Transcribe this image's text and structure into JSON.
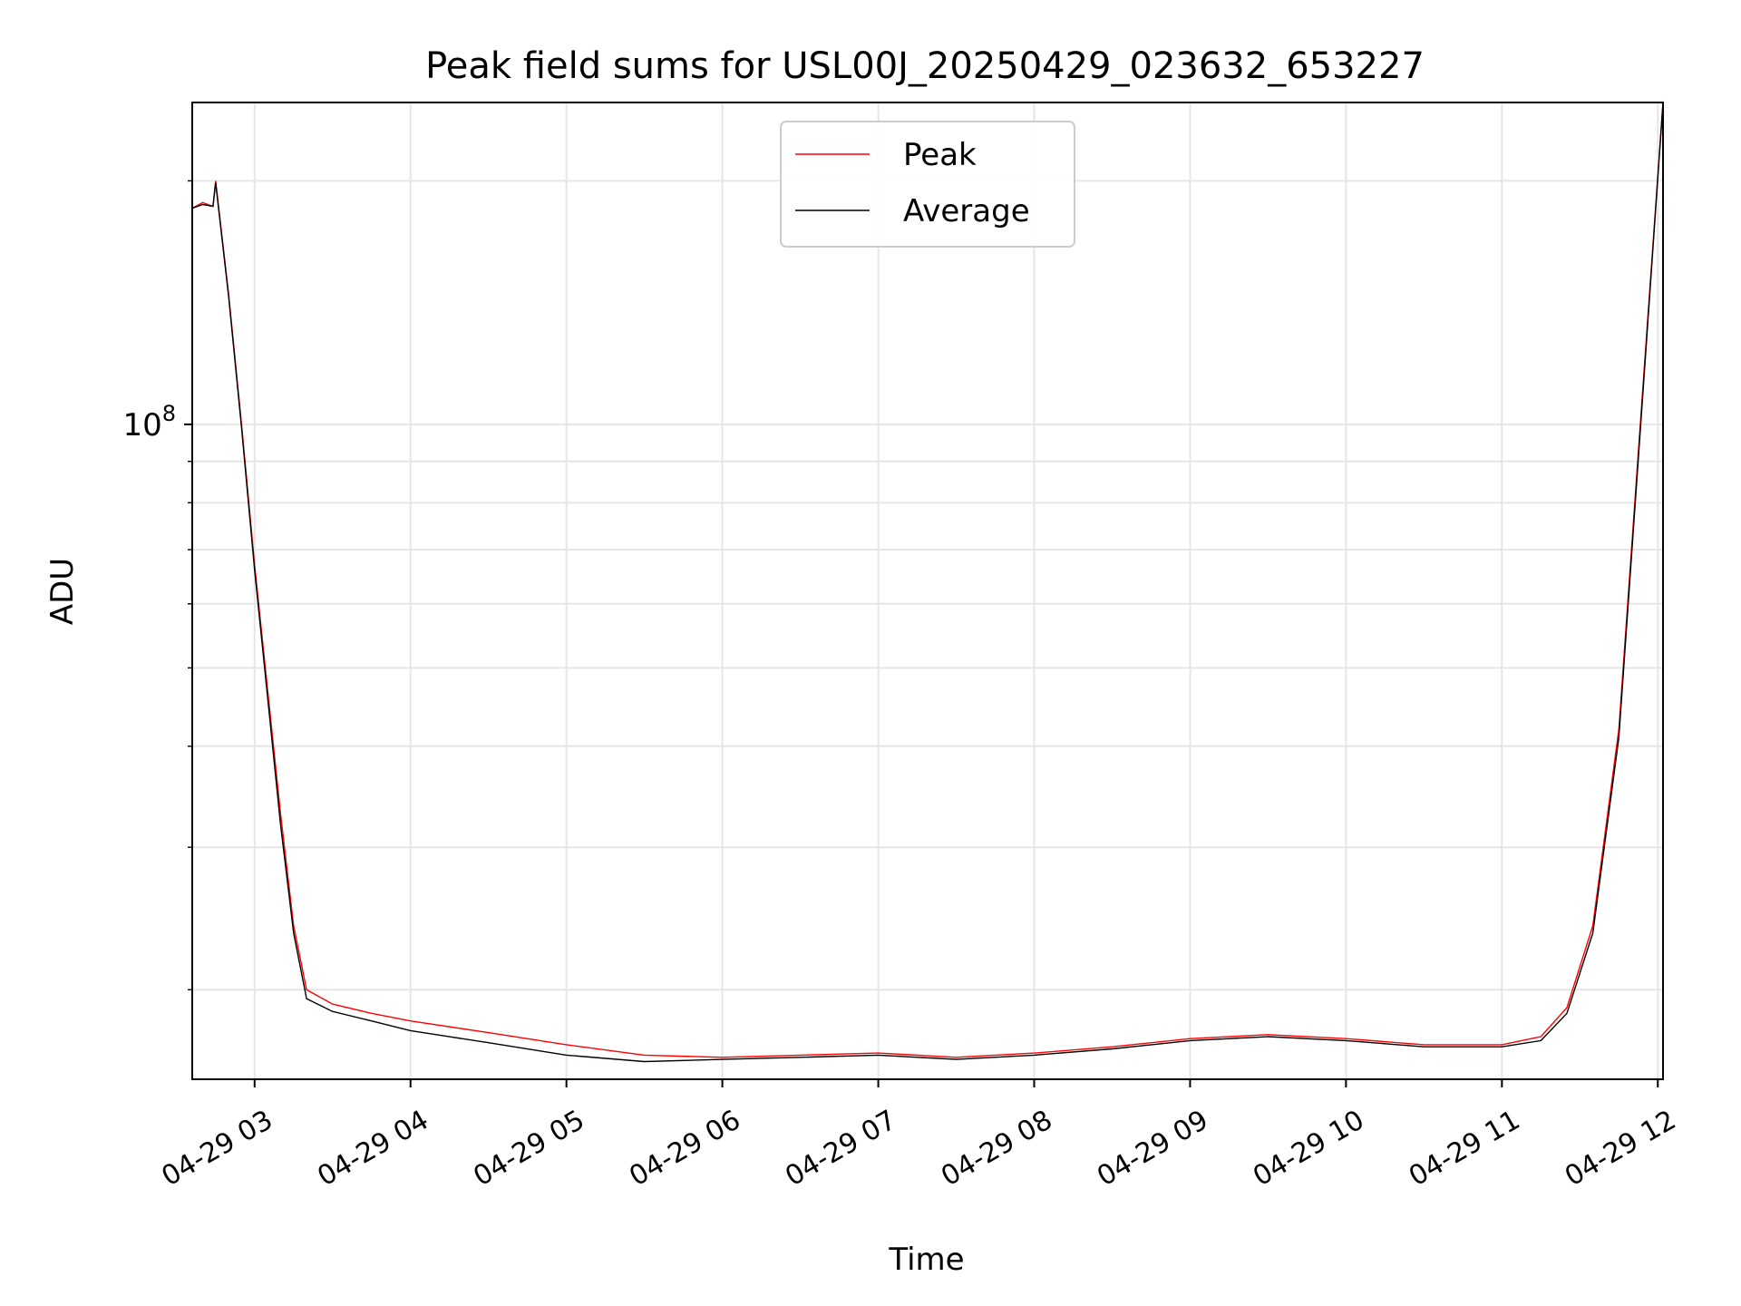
{
  "chart_data": {
    "type": "line",
    "title": "Peak field sums for USL00J_20250429_023632_653227",
    "xlabel": "Time",
    "ylabel": "ADU",
    "yscale": "log",
    "xlim": [
      "2025-04-29 02:36",
      "2025-04-29 12:02"
    ],
    "ylim": [
      15500000,
      250000000
    ],
    "xticks": [
      {
        "value": "2025-04-29 03:00",
        "label": "04-29 03"
      },
      {
        "value": "2025-04-29 04:00",
        "label": "04-29 04"
      },
      {
        "value": "2025-04-29 05:00",
        "label": "04-29 05"
      },
      {
        "value": "2025-04-29 06:00",
        "label": "04-29 06"
      },
      {
        "value": "2025-04-29 07:00",
        "label": "04-29 07"
      },
      {
        "value": "2025-04-29 08:00",
        "label": "04-29 08"
      },
      {
        "value": "2025-04-29 09:00",
        "label": "04-29 09"
      },
      {
        "value": "2025-04-29 10:00",
        "label": "04-29 10"
      },
      {
        "value": "2025-04-29 11:00",
        "label": "04-29 11"
      },
      {
        "value": "2025-04-29 12:00",
        "label": "04-29 12"
      }
    ],
    "yticks": [
      {
        "value": 100000000,
        "base": "10",
        "exponent": "8"
      }
    ],
    "grid": true,
    "legend_position": "top-center",
    "series": [
      {
        "name": "Peak",
        "color": "#ff0000",
        "x": [
          "2025-04-29 02:36",
          "2025-04-29 02:40",
          "2025-04-29 02:44",
          "2025-04-29 02:45",
          "2025-04-29 02:50",
          "2025-04-29 02:55",
          "2025-04-29 03:00",
          "2025-04-29 03:05",
          "2025-04-29 03:10",
          "2025-04-29 03:15",
          "2025-04-29 03:20",
          "2025-04-29 03:30",
          "2025-04-29 03:45",
          "2025-04-29 04:00",
          "2025-04-29 04:30",
          "2025-04-29 05:00",
          "2025-04-29 05:30",
          "2025-04-29 06:00",
          "2025-04-29 06:30",
          "2025-04-29 07:00",
          "2025-04-29 07:30",
          "2025-04-29 08:00",
          "2025-04-29 08:30",
          "2025-04-29 09:00",
          "2025-04-29 09:30",
          "2025-04-29 10:00",
          "2025-04-29 10:30",
          "2025-04-29 11:00",
          "2025-04-29 11:15",
          "2025-04-29 11:25",
          "2025-04-29 11:35",
          "2025-04-29 11:45",
          "2025-04-29 11:55",
          "2025-04-29 12:02"
        ],
        "values": [
          185000000,
          188000000,
          186000000,
          200000000,
          145000000,
          100000000,
          67000000,
          47000000,
          33000000,
          24000000,
          20000000,
          19200000,
          18700000,
          18300000,
          17700000,
          17100000,
          16600000,
          16500000,
          16600000,
          16700000,
          16500000,
          16700000,
          17000000,
          17400000,
          17600000,
          17400000,
          17100000,
          17100000,
          17500000,
          19000000,
          24000000,
          42000000,
          120000000,
          250000000
        ]
      },
      {
        "name": "Average",
        "color": "#000000",
        "x": [
          "2025-04-29 02:36",
          "2025-04-29 02:40",
          "2025-04-29 02:44",
          "2025-04-29 02:45",
          "2025-04-29 02:50",
          "2025-04-29 02:55",
          "2025-04-29 03:00",
          "2025-04-29 03:05",
          "2025-04-29 03:10",
          "2025-04-29 03:15",
          "2025-04-29 03:20",
          "2025-04-29 03:30",
          "2025-04-29 03:45",
          "2025-04-29 04:00",
          "2025-04-29 04:30",
          "2025-04-29 05:00",
          "2025-04-29 05:30",
          "2025-04-29 06:00",
          "2025-04-29 06:30",
          "2025-04-29 07:00",
          "2025-04-29 07:30",
          "2025-04-29 08:00",
          "2025-04-29 08:30",
          "2025-04-29 09:00",
          "2025-04-29 09:30",
          "2025-04-29 10:00",
          "2025-04-29 10:30",
          "2025-04-29 11:00",
          "2025-04-29 11:15",
          "2025-04-29 11:25",
          "2025-04-29 11:35",
          "2025-04-29 11:45",
          "2025-04-29 11:55",
          "2025-04-29 12:02"
        ],
        "values": [
          185000000,
          187000000,
          186000000,
          199000000,
          144000000,
          99000000,
          66000000,
          46000000,
          32000000,
          23500000,
          19500000,
          18800000,
          18300000,
          17800000,
          17200000,
          16600000,
          16300000,
          16400000,
          16500000,
          16600000,
          16400000,
          16600000,
          16900000,
          17300000,
          17500000,
          17300000,
          17000000,
          17000000,
          17300000,
          18700000,
          23500000,
          41000000,
          118000000,
          250000000
        ]
      }
    ]
  }
}
